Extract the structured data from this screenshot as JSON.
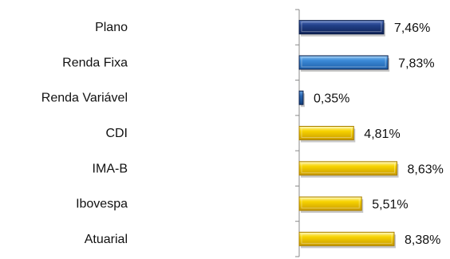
{
  "chart_data": {
    "type": "bar",
    "orientation": "horizontal",
    "title": "",
    "xlabel": "",
    "ylabel": "",
    "categories": [
      "Plano",
      "Renda Fixa",
      "Renda Variável",
      "CDI",
      "IMA-B",
      "Ibovespa",
      "Atuarial"
    ],
    "values": [
      7.46,
      7.83,
      0.35,
      4.81,
      8.63,
      5.51,
      8.38
    ],
    "value_labels": [
      "7,46%",
      "7,83%",
      "0,35%",
      "4,81%",
      "8,63%",
      "5,51%",
      "8,38%"
    ],
    "bar_colors": [
      "#1f3a7a",
      "#3b86d6",
      "#2a63ad",
      "#f5c400",
      "#f5c400",
      "#f5c400",
      "#f5c400"
    ],
    "xlim": [
      0,
      20
    ],
    "grid": false,
    "legend": "none"
  }
}
